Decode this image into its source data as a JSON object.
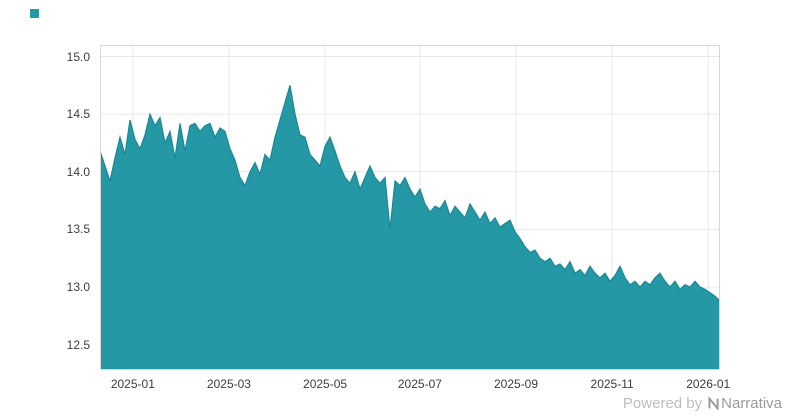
{
  "legend": {
    "swatch_color": "#2598a6"
  },
  "footer": {
    "powered_by": "Powered by",
    "brand": "Narrativa"
  },
  "chart_data": {
    "type": "area",
    "title": "",
    "xlabel": "",
    "ylabel": "",
    "series_color": "#2598a6",
    "grid": true,
    "legend_position": "top-left-swatch-only",
    "ylim": [
      12.28,
      15.1
    ],
    "y_ticks": [
      12.5,
      13.0,
      13.5,
      14.0,
      14.5,
      15.0
    ],
    "x_ticks": [
      {
        "label": "2025-01",
        "pos": 0.053
      },
      {
        "label": "2025-03",
        "pos": 0.208
      },
      {
        "label": "2025-05",
        "pos": 0.363
      },
      {
        "label": "2025-07",
        "pos": 0.516
      },
      {
        "label": "2025-09",
        "pos": 0.671
      },
      {
        "label": "2025-11",
        "pos": 0.826
      },
      {
        "label": "2026-01",
        "pos": 0.981
      }
    ],
    "x_range_note": "daily series from late 2024-12 to early 2026-01, evenly spaced samples",
    "values": [
      14.18,
      14.05,
      13.92,
      14.12,
      14.3,
      14.15,
      14.45,
      14.28,
      14.2,
      14.32,
      14.5,
      14.4,
      14.47,
      14.25,
      14.35,
      14.12,
      14.42,
      14.18,
      14.4,
      14.42,
      14.35,
      14.4,
      14.42,
      14.3,
      14.38,
      14.35,
      14.2,
      14.1,
      13.95,
      13.88,
      14.0,
      14.08,
      13.98,
      14.15,
      14.1,
      14.3,
      14.45,
      14.6,
      14.75,
      14.5,
      14.32,
      14.3,
      14.15,
      14.1,
      14.05,
      14.22,
      14.3,
      14.18,
      14.05,
      13.95,
      13.9,
      14.0,
      13.85,
      13.95,
      14.05,
      13.95,
      13.9,
      13.95,
      13.5,
      13.92,
      13.88,
      13.95,
      13.85,
      13.78,
      13.85,
      13.72,
      13.65,
      13.7,
      13.68,
      13.75,
      13.62,
      13.7,
      13.65,
      13.6,
      13.72,
      13.65,
      13.58,
      13.65,
      13.55,
      13.6,
      13.52,
      13.55,
      13.58,
      13.48,
      13.42,
      13.35,
      13.3,
      13.32,
      13.25,
      13.22,
      13.25,
      13.18,
      13.2,
      13.15,
      13.22,
      13.12,
      13.15,
      13.1,
      13.18,
      13.12,
      13.08,
      13.12,
      13.05,
      13.1,
      13.18,
      13.08,
      13.02,
      13.05,
      13.0,
      13.05,
      13.02,
      13.08,
      13.12,
      13.05,
      13.0,
      13.05,
      12.98,
      13.02,
      13.0,
      13.05,
      13.0,
      12.98,
      12.95,
      12.92,
      12.88
    ]
  }
}
